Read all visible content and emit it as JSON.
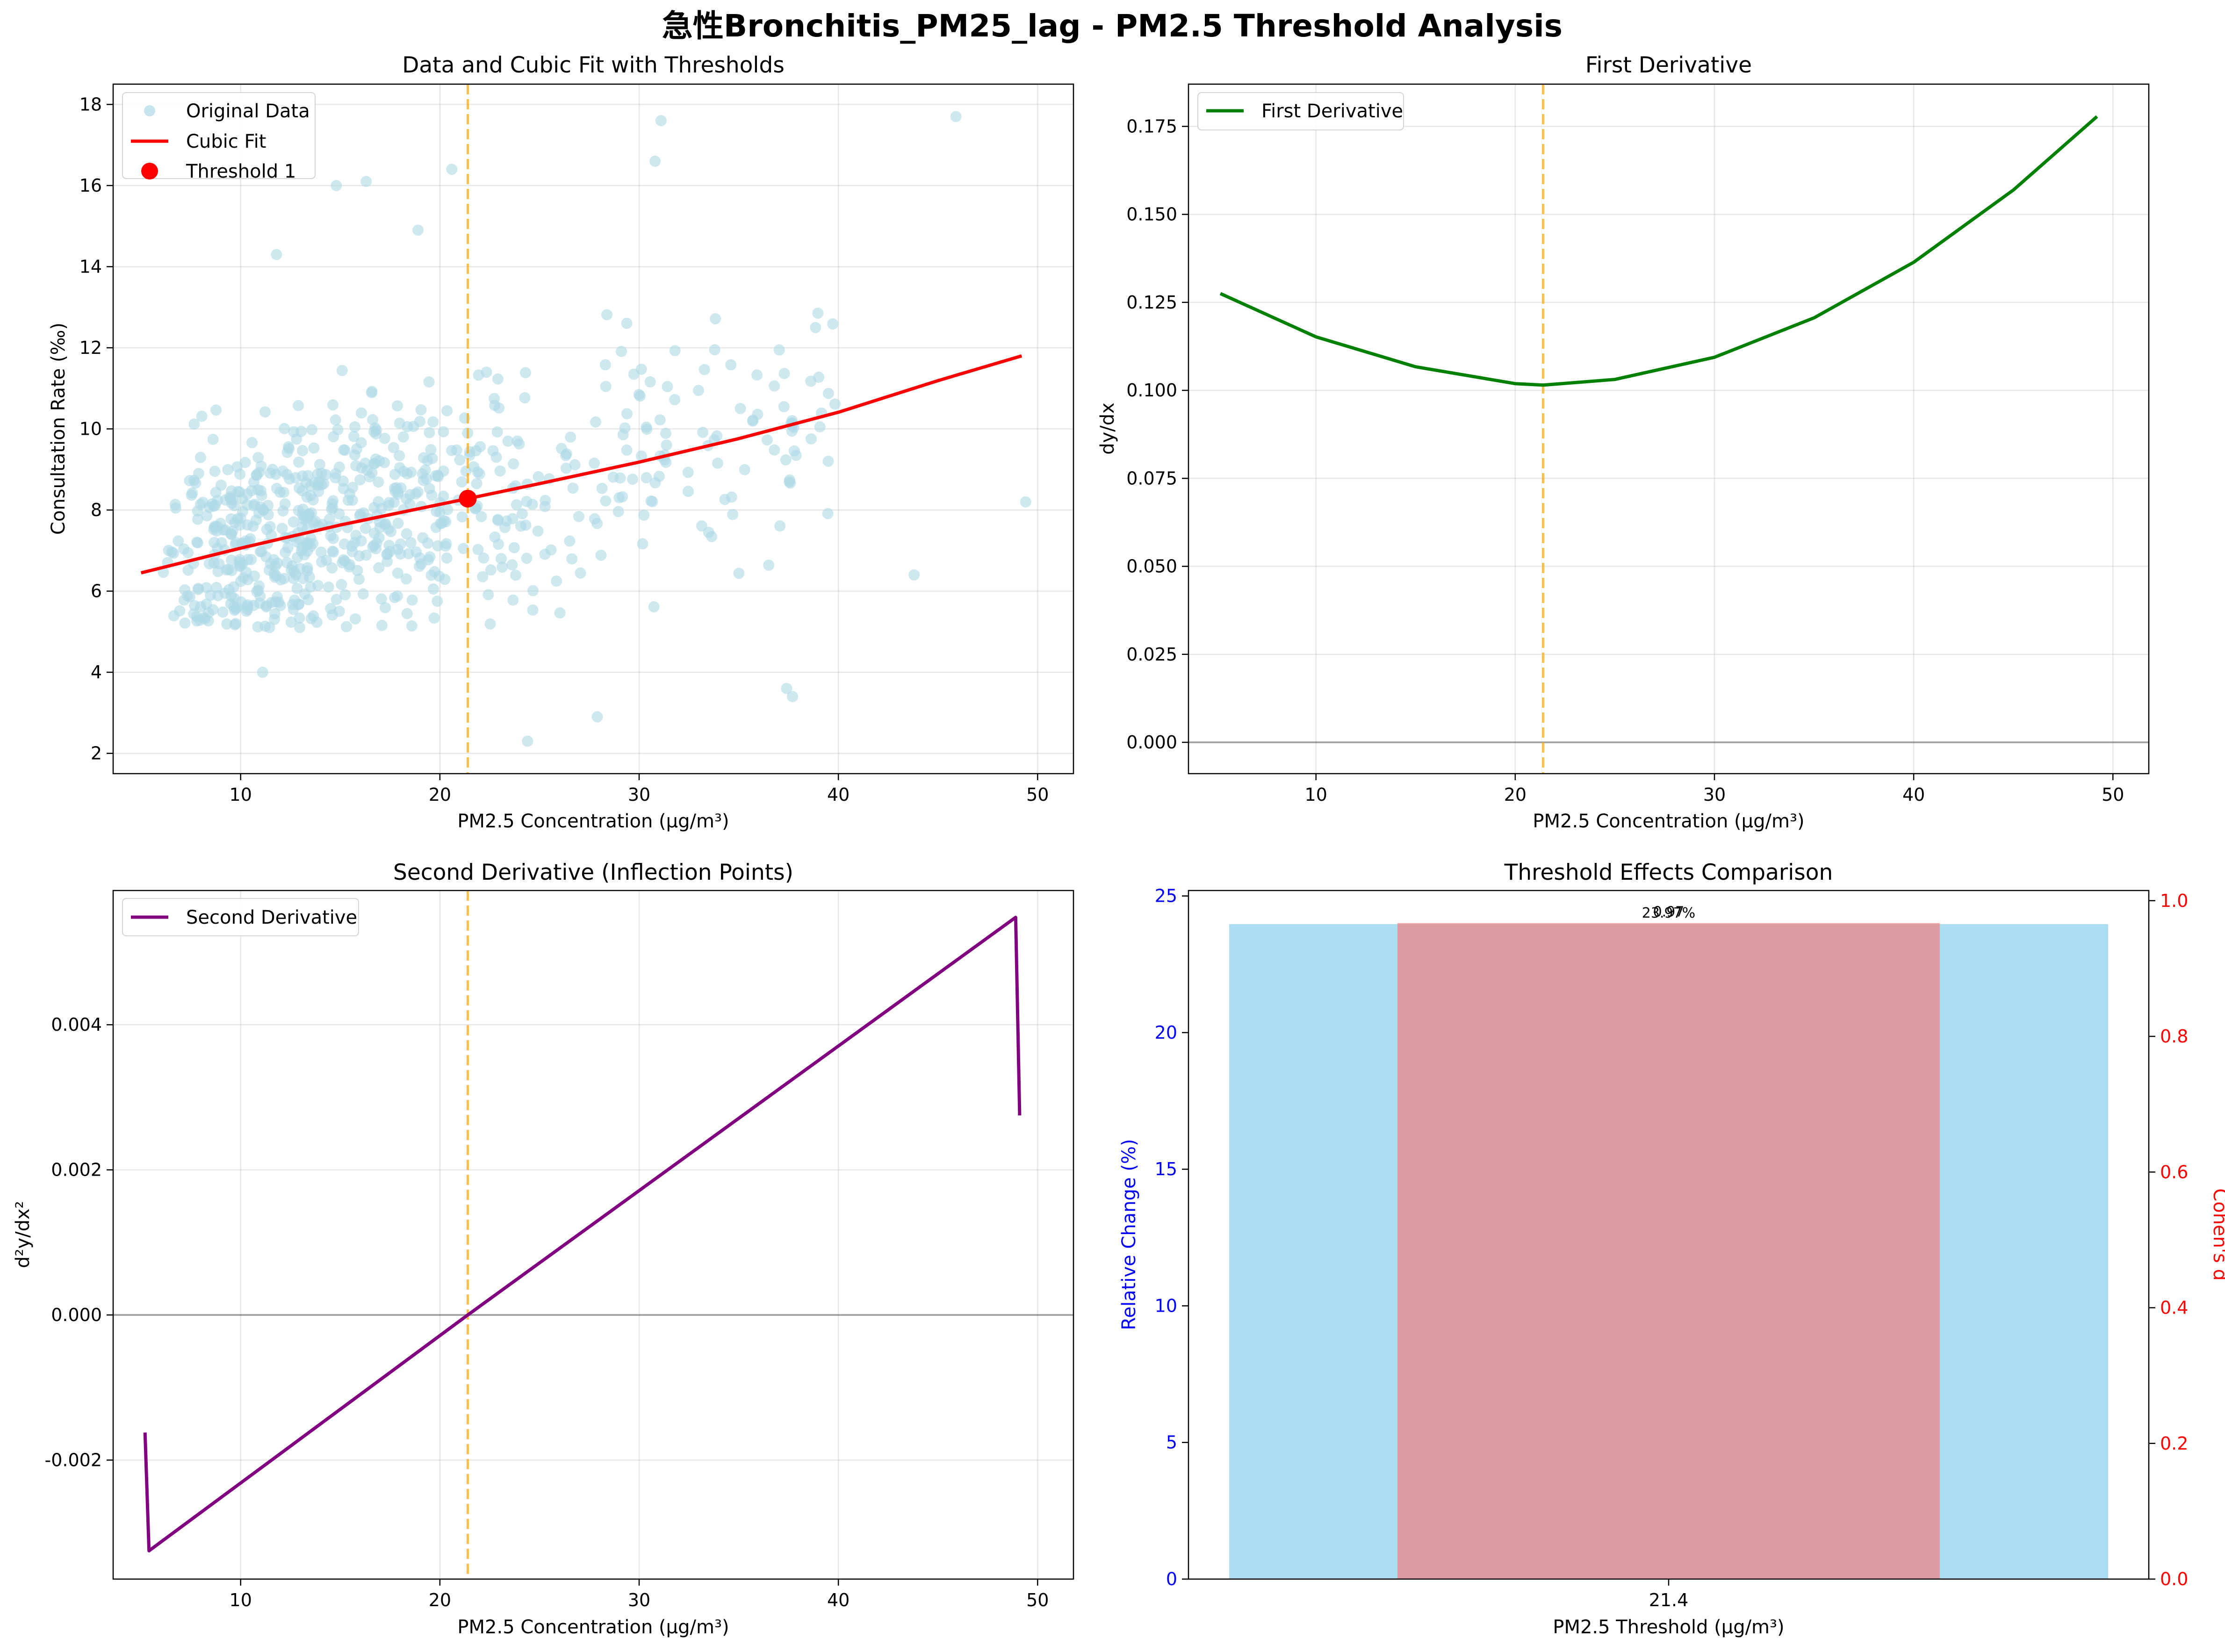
{
  "figure_title": "急性Bronchitis_PM25_lag - PM2.5 Threshold Analysis",
  "colors": {
    "scatter": "#add8e6",
    "fit": "#ff0000",
    "threshold_line": "#ffa500",
    "first_derivative": "#008000",
    "second_derivative": "#800080",
    "bar_relative": "#87ceeb",
    "bar_cohen": "#f08080",
    "left_axis_text": "#0000ff",
    "right_axis_text": "#ff0000"
  },
  "chart_data": [
    {
      "type": "scatter",
      "title": "Data and Cubic Fit with Thresholds",
      "xlabel": "PM2.5 Concentration (μg/m³)",
      "ylabel": "Consultation Rate (‰)",
      "xlim": [
        3.6,
        51.8
      ],
      "ylim": [
        1.5,
        18.5
      ],
      "xticks": [
        10,
        20,
        30,
        40,
        50
      ],
      "yticks": [
        2,
        4,
        6,
        8,
        10,
        12,
        14,
        16,
        18
      ],
      "grid": true,
      "legend": {
        "position": "top-left",
        "entries": [
          "Original Data",
          "Cubic Fit",
          "Threshold 1"
        ]
      },
      "series": [
        {
          "name": "Original Data",
          "kind": "scatter",
          "point_count": 731,
          "seed": 20240521,
          "x_range": [
            5.0,
            49.4
          ],
          "y_range": [
            2.3,
            17.7
          ],
          "outliers": [
            [
              11.1,
              4.0
            ],
            [
              24.4,
              2.3
            ],
            [
              27.9,
              2.9
            ],
            [
              37.4,
              3.6
            ],
            [
              37.7,
              3.4
            ],
            [
              14.8,
              16.0
            ],
            [
              16.3,
              16.1
            ],
            [
              20.6,
              16.4
            ],
            [
              31.1,
              17.6
            ],
            [
              45.9,
              17.7
            ],
            [
              30.8,
              16.6
            ],
            [
              11.8,
              14.3
            ],
            [
              18.9,
              14.9
            ],
            [
              49.4,
              8.2
            ],
            [
              43.8,
              6.4
            ]
          ]
        },
        {
          "name": "Cubic Fit",
          "kind": "line",
          "x": [
            5.0,
            10.0,
            15.0,
            20.0,
            21.4,
            25.0,
            30.0,
            35.0,
            40.0,
            45.0,
            49.2
          ],
          "y": [
            6.45,
            7.06,
            7.63,
            8.14,
            8.28,
            8.65,
            9.18,
            9.76,
            10.41,
            11.19,
            11.8
          ]
        },
        {
          "name": "Threshold 1",
          "kind": "point",
          "x": 21.4,
          "y": 8.28
        }
      ],
      "vlines": [
        21.4
      ]
    },
    {
      "type": "line",
      "title": "First Derivative",
      "xlabel": "PM2.5 Concentration (μg/m³)",
      "ylabel": "dy/dx",
      "xlim": [
        3.6,
        51.8
      ],
      "ylim": [
        -0.0089,
        0.187
      ],
      "xticks": [
        10,
        20,
        30,
        40,
        50
      ],
      "yticks": [
        0.0,
        0.025,
        0.05,
        0.075,
        0.1,
        0.125,
        0.15,
        0.175
      ],
      "ytick_labels": [
        "0.000",
        "0.025",
        "0.050",
        "0.075",
        "0.100",
        "0.125",
        "0.150",
        "0.175"
      ],
      "grid": true,
      "legend": {
        "position": "top-left",
        "entries": [
          "First Derivative"
        ]
      },
      "series": [
        {
          "name": "First Derivative",
          "kind": "line",
          "x": [
            5.2,
            10,
            15,
            20,
            21.4,
            25,
            30,
            35,
            40,
            45,
            49.2
          ],
          "y": [
            0.1275,
            0.1152,
            0.1067,
            0.1019,
            0.1015,
            0.1031,
            0.1094,
            0.1206,
            0.1364,
            0.1569,
            0.1778
          ]
        }
      ],
      "hlines": [
        0.0
      ],
      "vlines": [
        21.4
      ]
    },
    {
      "type": "line",
      "title": "Second Derivative (Inflection Points)",
      "xlabel": "PM2.5 Concentration (μg/m³)",
      "ylabel": "d²y/dx²",
      "xlim": [
        3.6,
        51.8
      ],
      "ylim": [
        -0.00364,
        0.00585
      ],
      "xticks": [
        10,
        20,
        30,
        40,
        50
      ],
      "yticks": [
        -0.002,
        0.0,
        0.002,
        0.004
      ],
      "ytick_labels": [
        "-0.002",
        "0.000",
        "0.002",
        "0.004"
      ],
      "grid": true,
      "legend": {
        "position": "top-left",
        "entries": [
          "Second Derivative"
        ]
      },
      "series": [
        {
          "name": "Second Derivative",
          "kind": "line",
          "x": [
            5.2,
            5.4,
            21.4,
            48.9,
            49.1
          ],
          "y": [
            -0.00162,
            -0.00325,
            0.0,
            0.00548,
            0.00275
          ]
        }
      ],
      "hlines": [
        0.0
      ],
      "vlines": [
        21.4
      ]
    },
    {
      "type": "bar",
      "title": "Threshold Effects Comparison",
      "xlabel": "PM2.5 Threshold (μg/m³)",
      "ylabel": "Relative Change (%)",
      "ylabel_right": "Cohen's d",
      "categories": [
        "21.4"
      ],
      "ylim": [
        0,
        25.2
      ],
      "ylim_right": [
        0,
        1.015
      ],
      "yticks": [
        0,
        5,
        10,
        15,
        20,
        25
      ],
      "yticks_right": [
        0.0,
        0.2,
        0.4,
        0.6,
        0.8,
        1.0
      ],
      "ytick_labels_right": [
        "0.0",
        "0.2",
        "0.4",
        "0.6",
        "0.8",
        "1.0"
      ],
      "series": [
        {
          "name": "Relative Change",
          "axis": "left",
          "values": [
            23.97
          ],
          "label": "23.97%"
        },
        {
          "name": "Cohen's d",
          "axis": "right",
          "values": [
            0.967
          ],
          "label": "0.97"
        }
      ]
    }
  ]
}
